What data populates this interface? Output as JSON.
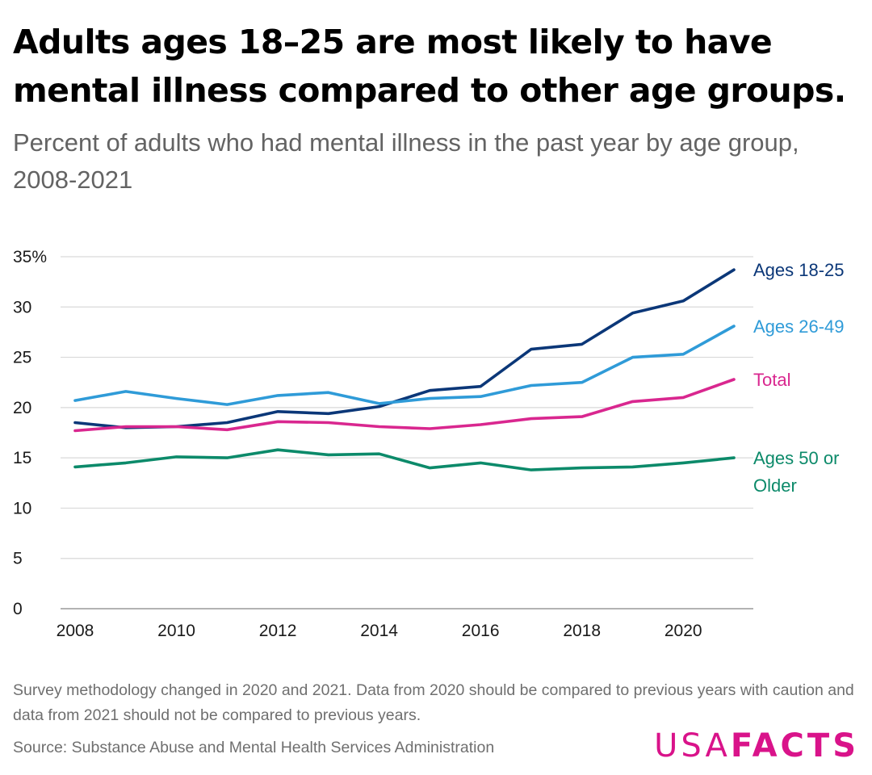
{
  "title": "Adults ages 18–25 are most likely to have mental illness compared to other age groups.",
  "subtitle": "Percent of adults who had mental illness in the past year by age group, 2008-2021",
  "note": "Survey methodology changed in 2020 and 2021. Data from 2020 should be compared to previous years with caution and data from 2021 should not be compared to previous years.",
  "source": "Source: Substance Abuse and Mental Health Services Administration",
  "logo": {
    "left": "USA",
    "right": "FACTS"
  },
  "chart_data": {
    "type": "line",
    "title": "Adults ages 18–25 are most likely to have mental illness compared to other age groups.",
    "xlabel": "",
    "ylabel": "",
    "x": [
      2008,
      2009,
      2010,
      2011,
      2012,
      2013,
      2014,
      2015,
      2016,
      2017,
      2018,
      2019,
      2020,
      2021
    ],
    "xlim": [
      2008,
      2021
    ],
    "ylim": [
      0,
      35
    ],
    "x_ticks": [
      2008,
      2010,
      2012,
      2014,
      2016,
      2018,
      2020
    ],
    "x_tick_labels": [
      "2008",
      "2010",
      "2012",
      "2014",
      "2016",
      "2018",
      "2020"
    ],
    "y_ticks": [
      0,
      5,
      10,
      15,
      20,
      25,
      30,
      35
    ],
    "y_tick_labels": [
      "0",
      "5",
      "10",
      "15",
      "20",
      "25",
      "30",
      "35%"
    ],
    "grid": true,
    "legend": "direct labels at line ends",
    "series": [
      {
        "name": "Ages 18-25",
        "label_lines": [
          "Ages 18-25"
        ],
        "color": "#0b3778",
        "values": [
          18.5,
          18.0,
          18.1,
          18.5,
          19.6,
          19.4,
          20.1,
          21.7,
          22.1,
          25.8,
          26.3,
          29.4,
          30.6,
          33.7
        ]
      },
      {
        "name": "Ages 26-49",
        "label_lines": [
          "Ages 26-49"
        ],
        "color": "#2f9bd8",
        "values": [
          20.7,
          21.6,
          20.9,
          20.3,
          21.2,
          21.5,
          20.4,
          20.9,
          21.1,
          22.2,
          22.5,
          25.0,
          25.3,
          28.1
        ]
      },
      {
        "name": "Total",
        "label_lines": [
          "Total"
        ],
        "color": "#d9278f",
        "values": [
          17.7,
          18.1,
          18.1,
          17.8,
          18.6,
          18.5,
          18.1,
          17.9,
          18.3,
          18.9,
          19.1,
          20.6,
          21.0,
          22.8
        ]
      },
      {
        "name": "Ages 50 or Older",
        "label_lines": [
          "Ages 50 or",
          "Older"
        ],
        "color": "#0c8a6a",
        "values": [
          14.1,
          14.5,
          15.1,
          15.0,
          15.8,
          15.3,
          15.4,
          14.0,
          14.5,
          13.8,
          14.0,
          14.1,
          14.5,
          15.0
        ]
      }
    ]
  }
}
